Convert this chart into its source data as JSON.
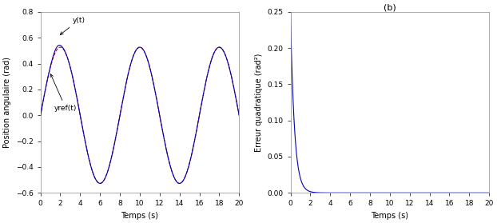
{
  "title_b": "(b)",
  "xlim": [
    0,
    20
  ],
  "ylim_left": [
    -0.6,
    0.8
  ],
  "ylim_right": [
    0,
    0.25
  ],
  "xlabel": "Temps (s)",
  "ylabel_left": "Position angulaire (rad)",
  "ylabel_right": "Erreur quadratique (rad²)",
  "yticks_left": [
    -0.6,
    -0.4,
    -0.2,
    0,
    0.2,
    0.4,
    0.6,
    0.8
  ],
  "yticks_right": [
    0,
    0.05,
    0.1,
    0.15,
    0.2,
    0.25
  ],
  "xticks_left": [
    0,
    2,
    4,
    6,
    8,
    10,
    12,
    14,
    16,
    18,
    20
  ],
  "xticks_right": [
    0,
    2,
    4,
    6,
    8,
    10,
    12,
    14,
    16,
    18,
    20
  ],
  "color_y": "#0000bb",
  "color_yref": "#cc0000",
  "color_error": "#0000bb",
  "annotation_y": "y(t)",
  "annotation_yref": "yref(t)",
  "sine_amplitude": 0.527,
  "sine_period": 8.0,
  "transient_peak": 0.64,
  "transient_peak_time": 1.8,
  "transient_decay": 0.55,
  "error_peak": 0.247,
  "error_decay_rate": 2.5
}
